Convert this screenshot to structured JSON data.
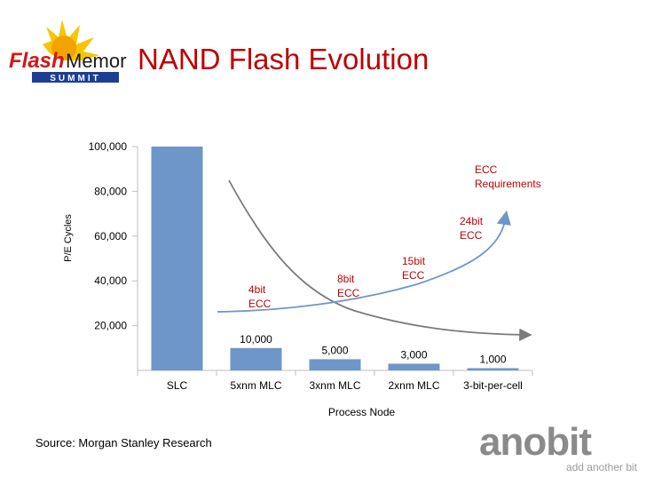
{
  "slide": {
    "title": "NAND Flash Evolution",
    "source": "Source: Morgan Stanley Research"
  },
  "logos": {
    "flash_memory_summit": {
      "word1": "Flash",
      "word2": "Memory",
      "word3": "SUMMIT"
    },
    "anobit": {
      "name": "anobit",
      "tagline": "add another bit"
    }
  },
  "colors": {
    "title": "#c00000",
    "bar": "#6f96c8",
    "annotation": "#c00000",
    "curve": "#7a7a7a",
    "ecc_curve": "#6f96c8"
  },
  "chart_data": {
    "type": "bar",
    "categories": [
      "SLC",
      "5xnm MLC",
      "3xnm MLC",
      "2xnm MLC",
      "3-bit-per-cell"
    ],
    "values": [
      100000,
      10000,
      5000,
      3000,
      1000
    ],
    "data_labels": [
      "",
      "10,000",
      "5,000",
      "3,000",
      "1,000"
    ],
    "xlabel": "Process Node",
    "ylabel": "P/E Cycles",
    "y_ticks": [
      20000,
      40000,
      60000,
      80000,
      100000
    ],
    "y_tick_labels": [
      "20,000",
      "40,000",
      "60,000",
      "80,000",
      "100,000"
    ],
    "ylim": [
      0,
      100000
    ],
    "grid": false,
    "annotations": [
      {
        "lines": [
          "4bit",
          "ECC"
        ]
      },
      {
        "lines": [
          "8bit",
          "ECC"
        ]
      },
      {
        "lines": [
          "15bit",
          "ECC"
        ]
      },
      {
        "lines": [
          "24bit",
          "ECC"
        ]
      },
      {
        "lines": [
          "ECC",
          "Requirements"
        ]
      }
    ]
  }
}
